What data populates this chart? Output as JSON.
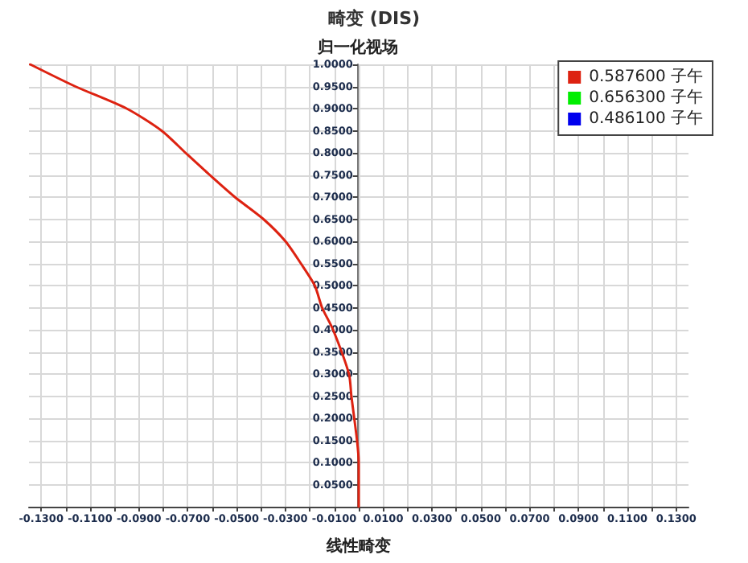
{
  "chart_data": {
    "type": "line",
    "title": "畸变 (DIS)",
    "xlabel": "线性畸变",
    "ylabel": "归一化视场",
    "x": [
      0,
      0,
      -0.0007,
      -0.003,
      -0.004,
      -0.0105,
      -0.015,
      -0.018,
      -0.0237,
      -0.03,
      -0.039,
      -0.0507,
      -0.061,
      -0.0709,
      -0.0807,
      -0.095,
      -0.116,
      -0.1345
    ],
    "series": [
      {
        "name": "0.587600 子午",
        "color": "#dd2211",
        "values": [
          0,
          0.1,
          0.15,
          0.25,
          0.3,
          0.4,
          0.45,
          0.5,
          0.55,
          0.6,
          0.65,
          0.7,
          0.75,
          0.8,
          0.85,
          0.9,
          0.95,
          1.0
        ]
      },
      {
        "name": "0.656300 子午",
        "color": "#00ee00",
        "values": [
          null,
          null,
          null,
          null,
          null,
          null,
          null,
          null,
          null,
          null,
          null,
          null,
          null,
          null,
          null,
          null,
          null,
          null
        ]
      },
      {
        "name": "0.486100 子午",
        "color": "#0000ee",
        "values": [
          null,
          null,
          null,
          null,
          null,
          null,
          null,
          null,
          null,
          null,
          null,
          null,
          null,
          null,
          null,
          null,
          null,
          null
        ]
      }
    ],
    "xlim": [
      -0.135,
      0.135
    ],
    "xticks": [
      {
        "value": -0.13,
        "label": "-0.1300"
      },
      {
        "value": -0.12,
        "label": null
      },
      {
        "value": -0.11,
        "label": "-0.1100"
      },
      {
        "value": -0.1,
        "label": null
      },
      {
        "value": -0.09,
        "label": "-0.0900"
      },
      {
        "value": -0.08,
        "label": null
      },
      {
        "value": -0.07,
        "label": "-0.0700"
      },
      {
        "value": -0.06,
        "label": null
      },
      {
        "value": -0.05,
        "label": "-0.0500"
      },
      {
        "value": -0.04,
        "label": null
      },
      {
        "value": -0.03,
        "label": "-0.0300"
      },
      {
        "value": -0.02,
        "label": null
      },
      {
        "value": -0.01,
        "label": "-0.0100"
      },
      {
        "value": 0,
        "label": null
      },
      {
        "value": 0.01,
        "label": "0.0100"
      },
      {
        "value": 0.02,
        "label": null
      },
      {
        "value": 0.03,
        "label": "0.0300"
      },
      {
        "value": 0.04,
        "label": null
      },
      {
        "value": 0.05,
        "label": "0.0500"
      },
      {
        "value": 0.06,
        "label": null
      },
      {
        "value": 0.07,
        "label": "0.0700"
      },
      {
        "value": 0.08,
        "label": null
      },
      {
        "value": 0.09,
        "label": "0.0900"
      },
      {
        "value": 0.1,
        "label": null
      },
      {
        "value": 0.11,
        "label": "0.1100"
      },
      {
        "value": 0.12,
        "label": null
      },
      {
        "value": 0.13,
        "label": "0.1300"
      }
    ],
    "ylim": [
      0,
      1
    ],
    "yticks": [
      {
        "value": 0.05,
        "label": "0.0500"
      },
      {
        "value": 0.1,
        "label": "0.1000"
      },
      {
        "value": 0.15,
        "label": "0.1500"
      },
      {
        "value": 0.2,
        "label": "0.2000"
      },
      {
        "value": 0.25,
        "label": "0.2500"
      },
      {
        "value": 0.3,
        "label": "0.3000"
      },
      {
        "value": 0.35,
        "label": "0.3500"
      },
      {
        "value": 0.4,
        "label": "0.4000"
      },
      {
        "value": 0.45,
        "label": "0.4500"
      },
      {
        "value": 0.5,
        "label": "0.5000"
      },
      {
        "value": 0.55,
        "label": "0.5500"
      },
      {
        "value": 0.6,
        "label": "0.6000"
      },
      {
        "value": 0.65,
        "label": "0.6500"
      },
      {
        "value": 0.7,
        "label": "0.7000"
      },
      {
        "value": 0.75,
        "label": "0.7500"
      },
      {
        "value": 0.8,
        "label": "0.8000"
      },
      {
        "value": 0.85,
        "label": "0.8500"
      },
      {
        "value": 0.9,
        "label": "0.9000"
      },
      {
        "value": 0.95,
        "label": "0.9500"
      },
      {
        "value": 1.0,
        "label": "1.0000"
      }
    ],
    "grid": true,
    "legend": "top right",
    "marker": "none",
    "line_style": "solid"
  }
}
